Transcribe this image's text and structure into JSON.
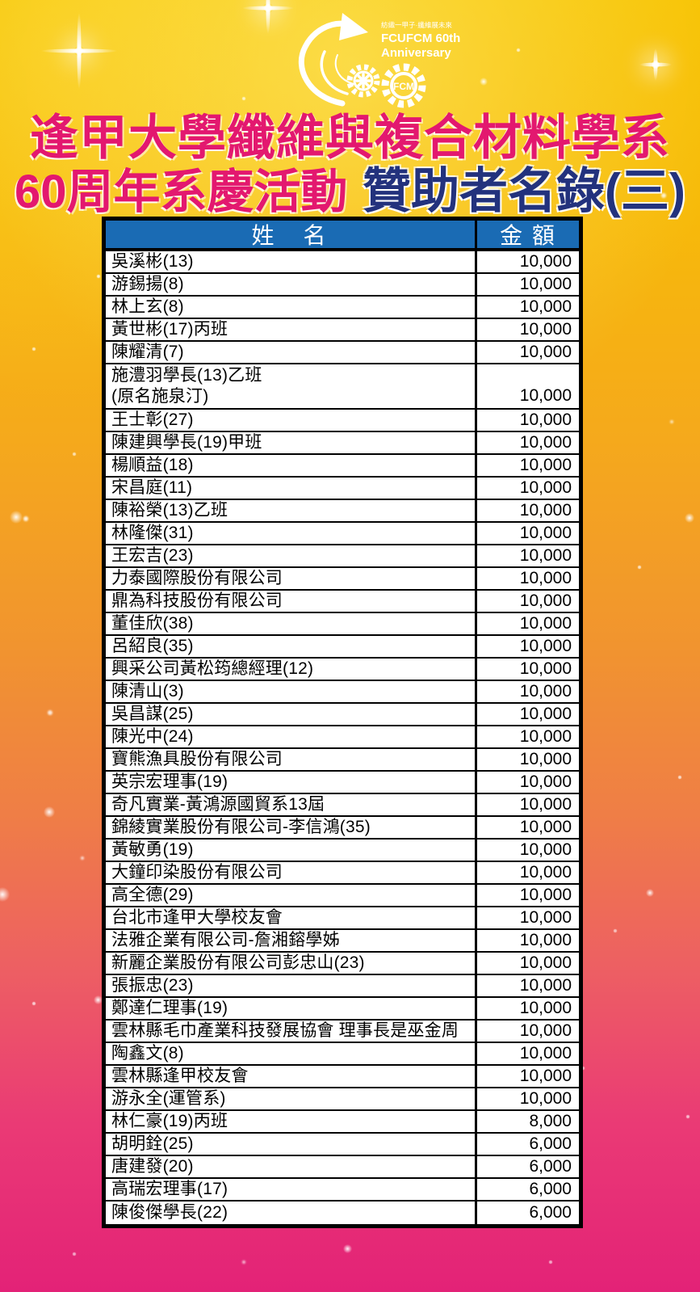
{
  "colors": {
    "title_pink": "#e3186f",
    "title_navy": "#23327d",
    "header_blue": "#1a6bb4",
    "bg_top_gold": "#f7c303",
    "bg_bottom_pink": "#e32277",
    "table_text": "#000000",
    "header_text": "#ffffff"
  },
  "logo": {
    "slogan": "紡織一甲子·纖維展未來",
    "line1": "FCUFCM 60th",
    "line2": "Anniversary",
    "gear_text": "FCM"
  },
  "title": {
    "line1": "逢甲大學纖維與複合材料學系",
    "line2_pink": "60周年系慶活動",
    "line2_navy": "贊助者名錄(三)"
  },
  "table": {
    "header_name": "姓　名",
    "header_amount": "金 額",
    "rows": [
      {
        "name": "吳溪彬(13)",
        "amount": "10,000"
      },
      {
        "name": "游錫揚(8)",
        "amount": "10,000"
      },
      {
        "name": "林上玄(8)",
        "amount": "10,000"
      },
      {
        "name": "黃世彬(17)丙班",
        "amount": "10,000"
      },
      {
        "name": "陳耀清(7)",
        "amount": "10,000"
      },
      {
        "name": "施澧羽學長(13)乙班\n(原名施泉汀)",
        "amount": "10,000",
        "tall": true
      },
      {
        "name": "王士彰(27)",
        "amount": "10,000"
      },
      {
        "name": "陳建興學長(19)甲班",
        "amount": "10,000"
      },
      {
        "name": "楊順益(18)",
        "amount": "10,000"
      },
      {
        "name": "宋昌庭(11)",
        "amount": "10,000"
      },
      {
        "name": "陳裕榮(13)乙班",
        "amount": "10,000"
      },
      {
        "name": "林隆傑(31)",
        "amount": "10,000"
      },
      {
        "name": "王宏吉(23)",
        "amount": "10,000"
      },
      {
        "name": "力泰國際股份有限公司",
        "amount": "10,000"
      },
      {
        "name": "鼎為科技股份有限公司",
        "amount": "10,000"
      },
      {
        "name": "董佳欣(38)",
        "amount": "10,000"
      },
      {
        "name": "呂紹良(35)",
        "amount": "10,000"
      },
      {
        "name": "興采公司黃松筠總經理(12)",
        "amount": "10,000"
      },
      {
        "name": "陳清山(3)",
        "amount": "10,000"
      },
      {
        "name": "吳昌謀(25)",
        "amount": "10,000"
      },
      {
        "name": "陳光中(24)",
        "amount": "10,000"
      },
      {
        "name": "寶熊漁具股份有限公司",
        "amount": "10,000"
      },
      {
        "name": "英宗宏理事(19)",
        "amount": "10,000"
      },
      {
        "name": "奇凡實業-黃鴻源國貿系13屆",
        "amount": "10,000"
      },
      {
        "name": "錦綾實業股份有限公司-李信鴻(35)",
        "amount": "10,000"
      },
      {
        "name": "黃敏勇(19)",
        "amount": "10,000"
      },
      {
        "name": "大鐘印染股份有限公司",
        "amount": "10,000"
      },
      {
        "name": "高全德(29)",
        "amount": "10,000"
      },
      {
        "name": "台北市逢甲大學校友會",
        "amount": "10,000"
      },
      {
        "name": "法雅企業有限公司-詹湘鎔學姊",
        "amount": "10,000"
      },
      {
        "name": "新麗企業股份有限公司彭忠山(23)",
        "amount": "10,000"
      },
      {
        "name": "張振忠(23)",
        "amount": "10,000"
      },
      {
        "name": "鄭達仁理事(19)",
        "amount": "10,000"
      },
      {
        "name": "雲林縣毛巾產業科技發展協會 理事長是巫金周",
        "amount": "10,000"
      },
      {
        "name": "陶鑫文(8)",
        "amount": "10,000"
      },
      {
        "name": "雲林縣逢甲校友會",
        "amount": "10,000"
      },
      {
        "name": "游永全(運管系)",
        "amount": "10,000"
      },
      {
        "name": "林仁豪(19)丙班",
        "amount": "8,000"
      },
      {
        "name": "胡明銓(25)",
        "amount": "6,000"
      },
      {
        "name": "唐建發(20)",
        "amount": "6,000"
      },
      {
        "name": "高瑞宏理事(17)",
        "amount": "6,000"
      },
      {
        "name": "陳俊傑學長(22)",
        "amount": "6,000"
      }
    ]
  }
}
